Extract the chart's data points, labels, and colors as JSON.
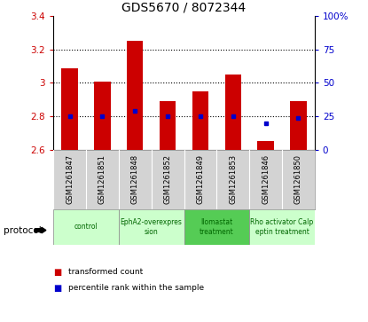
{
  "title": "GDS5670 / 8072344",
  "samples": [
    "GSM1261847",
    "GSM1261851",
    "GSM1261848",
    "GSM1261852",
    "GSM1261849",
    "GSM1261853",
    "GSM1261846",
    "GSM1261850"
  ],
  "bar_bottoms": [
    2.6,
    2.6,
    2.6,
    2.6,
    2.6,
    2.6,
    2.6,
    2.6
  ],
  "bar_tops": [
    3.09,
    3.01,
    3.25,
    2.89,
    2.95,
    3.05,
    2.65,
    2.89
  ],
  "percentile_values": [
    2.8,
    2.8,
    2.83,
    2.8,
    2.8,
    2.8,
    2.76,
    2.79
  ],
  "ylim": [
    2.6,
    3.4
  ],
  "y_ticks_left": [
    2.6,
    2.8,
    3.0,
    3.2,
    3.4
  ],
  "y_ticks_right": [
    0,
    25,
    50,
    75,
    100
  ],
  "ytick_labels_left": [
    "2.6",
    "2.8",
    "3",
    "3.2",
    "3.4"
  ],
  "ytick_labels_right": [
    "0",
    "25",
    "50",
    "75",
    "100%"
  ],
  "groups": [
    {
      "label": "control",
      "start": 0,
      "end": 2,
      "color": "#ccffcc"
    },
    {
      "label": "EphA2-overexpres\nsion",
      "start": 2,
      "end": 4,
      "color": "#ccffcc"
    },
    {
      "label": "Ilomastat\ntreatment",
      "start": 4,
      "end": 6,
      "color": "#55cc55"
    },
    {
      "label": "Rho activator Calp\neptin treatment",
      "start": 6,
      "end": 8,
      "color": "#ccffcc"
    }
  ],
  "bar_color": "#cc0000",
  "percentile_color": "#0000cc",
  "bar_width": 0.5,
  "dotted_line_y": [
    2.8,
    3.0,
    3.2
  ],
  "legend_bar_label": "transformed count",
  "legend_dot_label": "percentile rank within the sample",
  "protocol_label": "protocol",
  "ylabel_color_left": "#cc0000",
  "ylabel_color_right": "#0000cc"
}
